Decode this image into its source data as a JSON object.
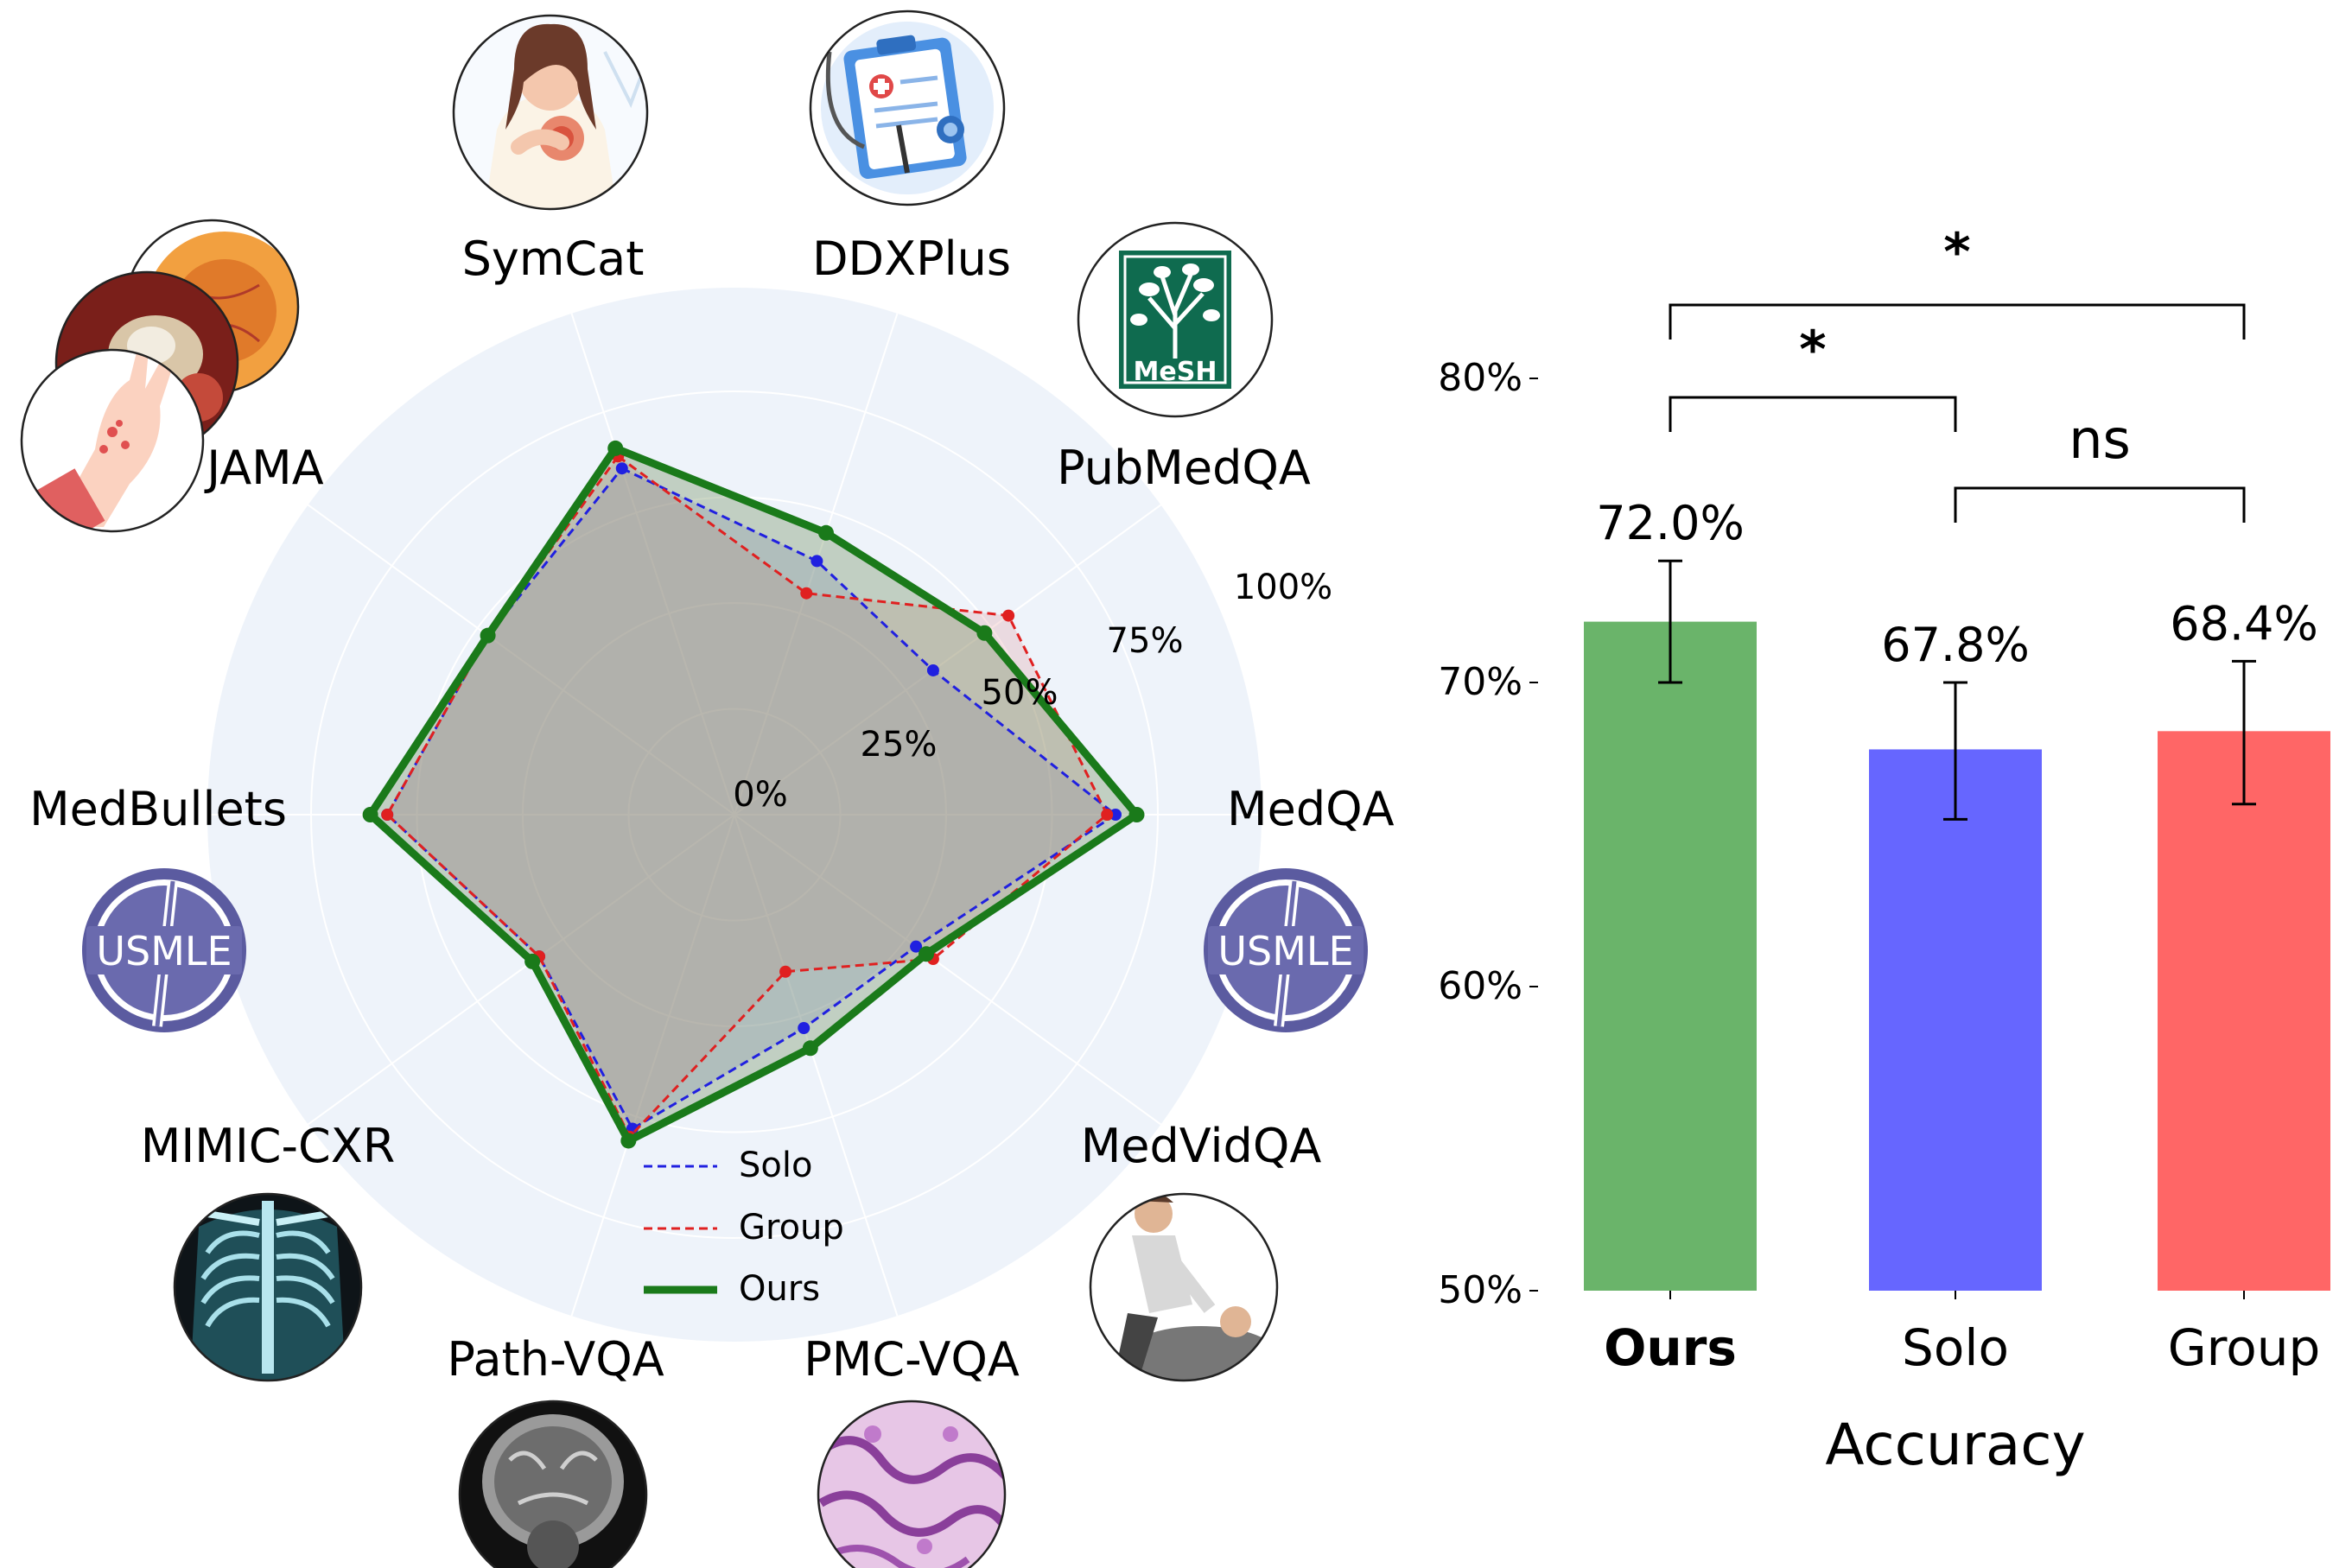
{
  "chart_data": [
    {
      "type": "radar",
      "categories": [
        "SymCat",
        "DDXPlus",
        "PubMedQA",
        "MedQA",
        "MedVidQA",
        "PMC-VQA",
        "Path-VQA",
        "MIMIC-CXR",
        "MedBullets",
        "JAMA"
      ],
      "radial_ticks": [
        "0%",
        "25%",
        "50%",
        "75%",
        "100%"
      ],
      "rlim": [
        0,
        100
      ],
      "series": [
        {
          "name": "Solo",
          "color": "#2020e0",
          "style": "dashed",
          "values": [
            86,
            63,
            58,
            90,
            53,
            53,
            78,
            57,
            82,
            72
          ]
        },
        {
          "name": "Group",
          "color": "#e02020",
          "style": "dashed",
          "values": [
            89,
            55,
            80,
            88,
            58,
            39,
            80,
            57,
            82,
            72
          ]
        },
        {
          "name": "Ours",
          "color": "#1a7a1a",
          "style": "solid",
          "values": [
            91,
            70,
            73,
            95,
            56,
            58,
            81,
            59,
            86,
            72
          ]
        }
      ],
      "icons": [
        "symptom-patient-icon",
        "clipboard-stethoscope-icon",
        "mesh-tree-logo",
        "usmle-logo",
        "cpr-icon",
        "histology-slide-icon",
        "brain-mri-icon",
        "chest-xray-icon",
        "usmle-logo",
        "clinical-photos-icon"
      ],
      "icon_texts": {
        "mesh": "MeSH",
        "usmle": "USMLE"
      },
      "legend_position": "bottom-center"
    },
    {
      "type": "bar",
      "categories": [
        "Ours",
        "Solo",
        "Group"
      ],
      "values": [
        72.0,
        67.8,
        68.4
      ],
      "value_labels": [
        "72.0%",
        "67.8%",
        "68.4%"
      ],
      "error_bars": [
        [
          70.0,
          74.0
        ],
        [
          65.5,
          70.0
        ],
        [
          66.0,
          70.7
        ]
      ],
      "colors": [
        "#6ab46a",
        "#6666ff",
        "#ff6666"
      ],
      "xlabel": "Accuracy",
      "ylabel": "",
      "ylim": [
        50,
        82
      ],
      "yticks": [
        50,
        60,
        70,
        80
      ],
      "ytick_labels": [
        "50%",
        "60%",
        "70%",
        "80%"
      ],
      "significance": [
        {
          "pair": [
            "Ours",
            "Group"
          ],
          "label": "*"
        },
        {
          "pair": [
            "Ours",
            "Solo"
          ],
          "label": "*"
        },
        {
          "pair": [
            "Solo",
            "Group"
          ],
          "label": "ns"
        }
      ]
    }
  ]
}
